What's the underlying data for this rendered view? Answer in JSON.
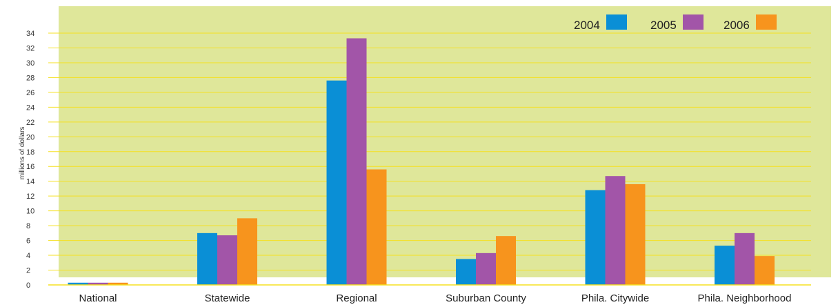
{
  "chart_data": {
    "type": "bar",
    "title": "",
    "xlabel": "",
    "ylabel": "millions of dollars",
    "ylim": [
      0,
      34
    ],
    "yticks": [
      0,
      2,
      4,
      6,
      8,
      10,
      12,
      14,
      16,
      18,
      20,
      22,
      24,
      26,
      28,
      30,
      32,
      34
    ],
    "grid": true,
    "legend_position": "top-right",
    "background_color": "#dfe79a",
    "grid_color": "#f5e020",
    "categories": [
      "National",
      "Statewide",
      "Regional",
      "Suburban County",
      "Phila. Citywide",
      "Phila. Neighborhood"
    ],
    "series": [
      {
        "name": "2004",
        "color": "#0a8fd6",
        "values": [
          0.3,
          7.0,
          27.6,
          3.5,
          12.8,
          5.3
        ]
      },
      {
        "name": "2005",
        "color": "#a255a8",
        "values": [
          0.3,
          6.7,
          33.3,
          4.3,
          14.7,
          7.0
        ]
      },
      {
        "name": "2006",
        "color": "#f7941d",
        "values": [
          0.3,
          9.0,
          15.6,
          6.6,
          13.6,
          3.9
        ]
      }
    ]
  }
}
